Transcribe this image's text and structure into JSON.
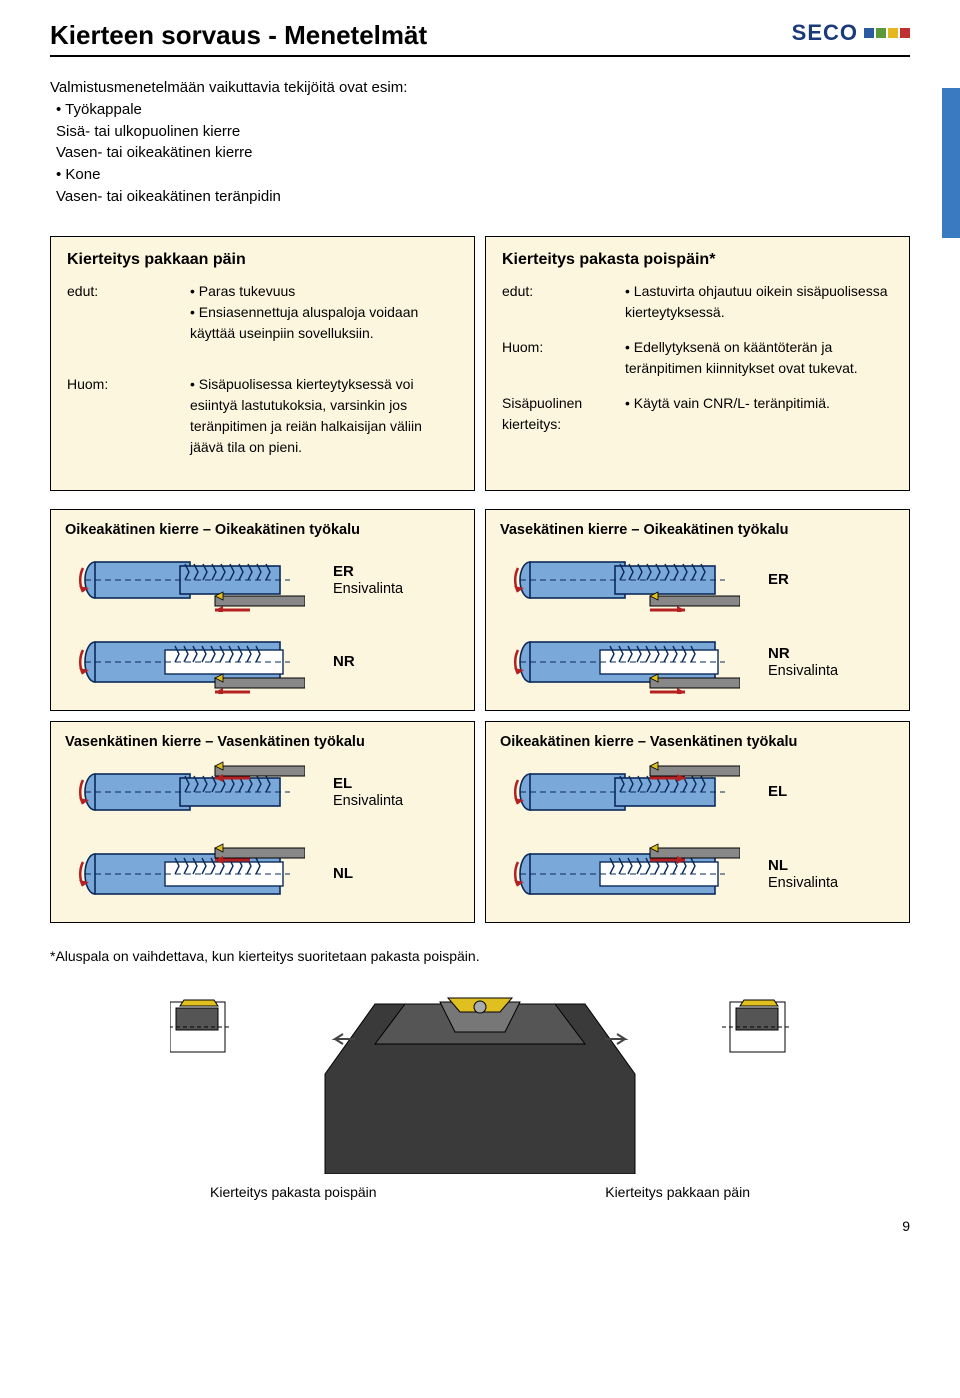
{
  "colors": {
    "box_bg": "#fdf6df",
    "workpiece_fill": "#7aa8d8",
    "workpiece_stroke": "#0a2a5a",
    "tool_gray": "#888888",
    "tool_outline": "#000000",
    "arrow_red": "#b52020",
    "insert_yellow": "#e0c020",
    "thread_stroke": "#0a2a5a",
    "holder_gray": "#555555",
    "holder_dark": "#222222"
  },
  "header": {
    "title": "Kierteen sorvaus - Menetelmät",
    "logo_text": "SECO"
  },
  "intro": {
    "line1": "Valmistusmenetelmään vaikuttavia tekijöitä ovat esim:",
    "bullets": [
      "• Työkappale",
      "   Sisä- tai ulkopuolinen kierre",
      "   Vasen- tai oikeakätinen kierre",
      "• Kone",
      "   Vasen- tai oikeakätinen teränpidin"
    ]
  },
  "left_box": {
    "title": "Kierteitys pakkaan päin",
    "rows": [
      {
        "label": "edut:",
        "items": [
          "• Paras tukevuus",
          "• Ensiasennettuja aluspaloja voidaan käyttää useinpiin sovelluksiin."
        ]
      },
      {
        "label": "Huom:",
        "items": [
          "• Sisäpuolisessa kierteytyksessä voi esiintyä lastutukoksia, varsinkin jos teränpitimen ja reiän halkaisijan väliin jäävä tila on pieni."
        ]
      }
    ]
  },
  "right_box": {
    "title": "Kierteitys pakasta poispäin*",
    "rows": [
      {
        "label": "edut:",
        "items": [
          "• Lastuvirta ohjautuu oikein sisäpuolisessa kierteytyksessä."
        ]
      },
      {
        "label": "Huom:",
        "items": [
          "• Edellytyksenä on kääntöterän ja teränpitimen kiinnitykset ovat tukevat."
        ]
      },
      {
        "label": "Sisäpuolinen kierteitys:",
        "items": [
          "• Käytä vain CNR/L- teränpitimiä."
        ]
      }
    ]
  },
  "groups": [
    {
      "left": {
        "heading": "Oikeakätinen kierre – Oikeakätinen työkalu",
        "rows": [
          {
            "code": "ER",
            "sub": "Ensivalinta",
            "mode": "ext",
            "thread_right": true,
            "arrow_dir": "left",
            "tool_under": true
          },
          {
            "code": "NR",
            "sub": "",
            "mode": "int",
            "thread_right": true,
            "arrow_dir": "left",
            "tool_under": true
          }
        ]
      },
      "right": {
        "heading": "Vasekätinen kierre – Oikeakätinen työkalu",
        "rows": [
          {
            "code": "ER",
            "sub": "",
            "mode": "ext",
            "thread_right": true,
            "arrow_dir": "right",
            "tool_under": true
          },
          {
            "code": "NR",
            "sub": "Ensivalinta",
            "mode": "int",
            "thread_right": true,
            "arrow_dir": "right",
            "tool_under": true
          }
        ]
      }
    },
    {
      "left": {
        "heading": "Vasenkätinen kierre – Vasenkätinen työkalu",
        "rows": [
          {
            "code": "EL",
            "sub": "Ensivalinta",
            "mode": "ext",
            "thread_right": true,
            "arrow_dir": "left",
            "tool_over": true
          },
          {
            "code": "NL",
            "sub": "",
            "mode": "int",
            "thread_right": true,
            "arrow_dir": "left",
            "tool_over": true
          }
        ]
      },
      "right": {
        "heading": "Oikeakätinen kierre – Vasenkätinen työkalu",
        "rows": [
          {
            "code": "EL",
            "sub": "",
            "mode": "ext",
            "thread_right": true,
            "arrow_dir": "right",
            "tool_over": true
          },
          {
            "code": "NL",
            "sub": "Ensivalinta",
            "mode": "int",
            "thread_right": true,
            "arrow_dir": "right",
            "tool_over": true
          }
        ]
      }
    }
  ],
  "footnote": "*Aluspala on vaihdettava, kun kierteitys suoritetaan pakasta poispäin.",
  "bottom": {
    "left_caption": "Kierteitys pakasta poispäin",
    "right_caption": "Kierteitys pakkaan päin"
  },
  "page_number": "9"
}
